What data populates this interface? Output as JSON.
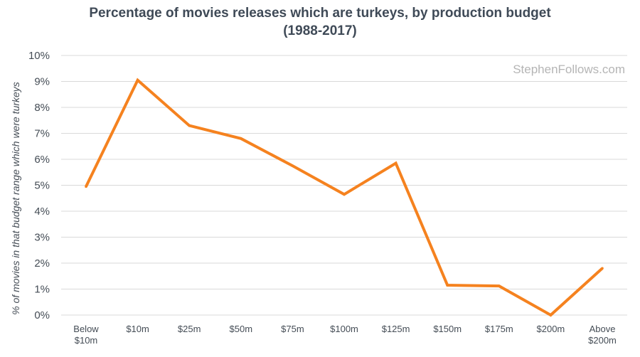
{
  "chart_data": {
    "type": "line",
    "title": "Percentage of movies releases which are turkeys, by production budget",
    "subtitle": "(1988-2017)",
    "ylabel": "% of movies in that budget range which were turkeys",
    "xlabel": "",
    "watermark": "StephenFollows.com",
    "categories": [
      [
        "Below",
        "$10m"
      ],
      [
        "$10m"
      ],
      [
        "$25m"
      ],
      [
        "$50m"
      ],
      [
        "$75m"
      ],
      [
        "$100m"
      ],
      [
        "$125m"
      ],
      [
        "$150m"
      ],
      [
        "$175m"
      ],
      [
        "$200m"
      ],
      [
        "Above",
        "$200m"
      ]
    ],
    "values": [
      4.95,
      9.05,
      7.3,
      6.8,
      5.75,
      4.65,
      5.85,
      1.15,
      1.12,
      0.0,
      1.8
    ],
    "ylim": [
      0,
      10
    ],
    "yticks": [
      "0%",
      "1%",
      "2%",
      "3%",
      "4%",
      "5%",
      "6%",
      "7%",
      "8%",
      "9%",
      "10%"
    ],
    "grid": true,
    "line_color": "#f5821f",
    "grid_color": "#d9d9d9",
    "title_color": "#3f4a57"
  }
}
